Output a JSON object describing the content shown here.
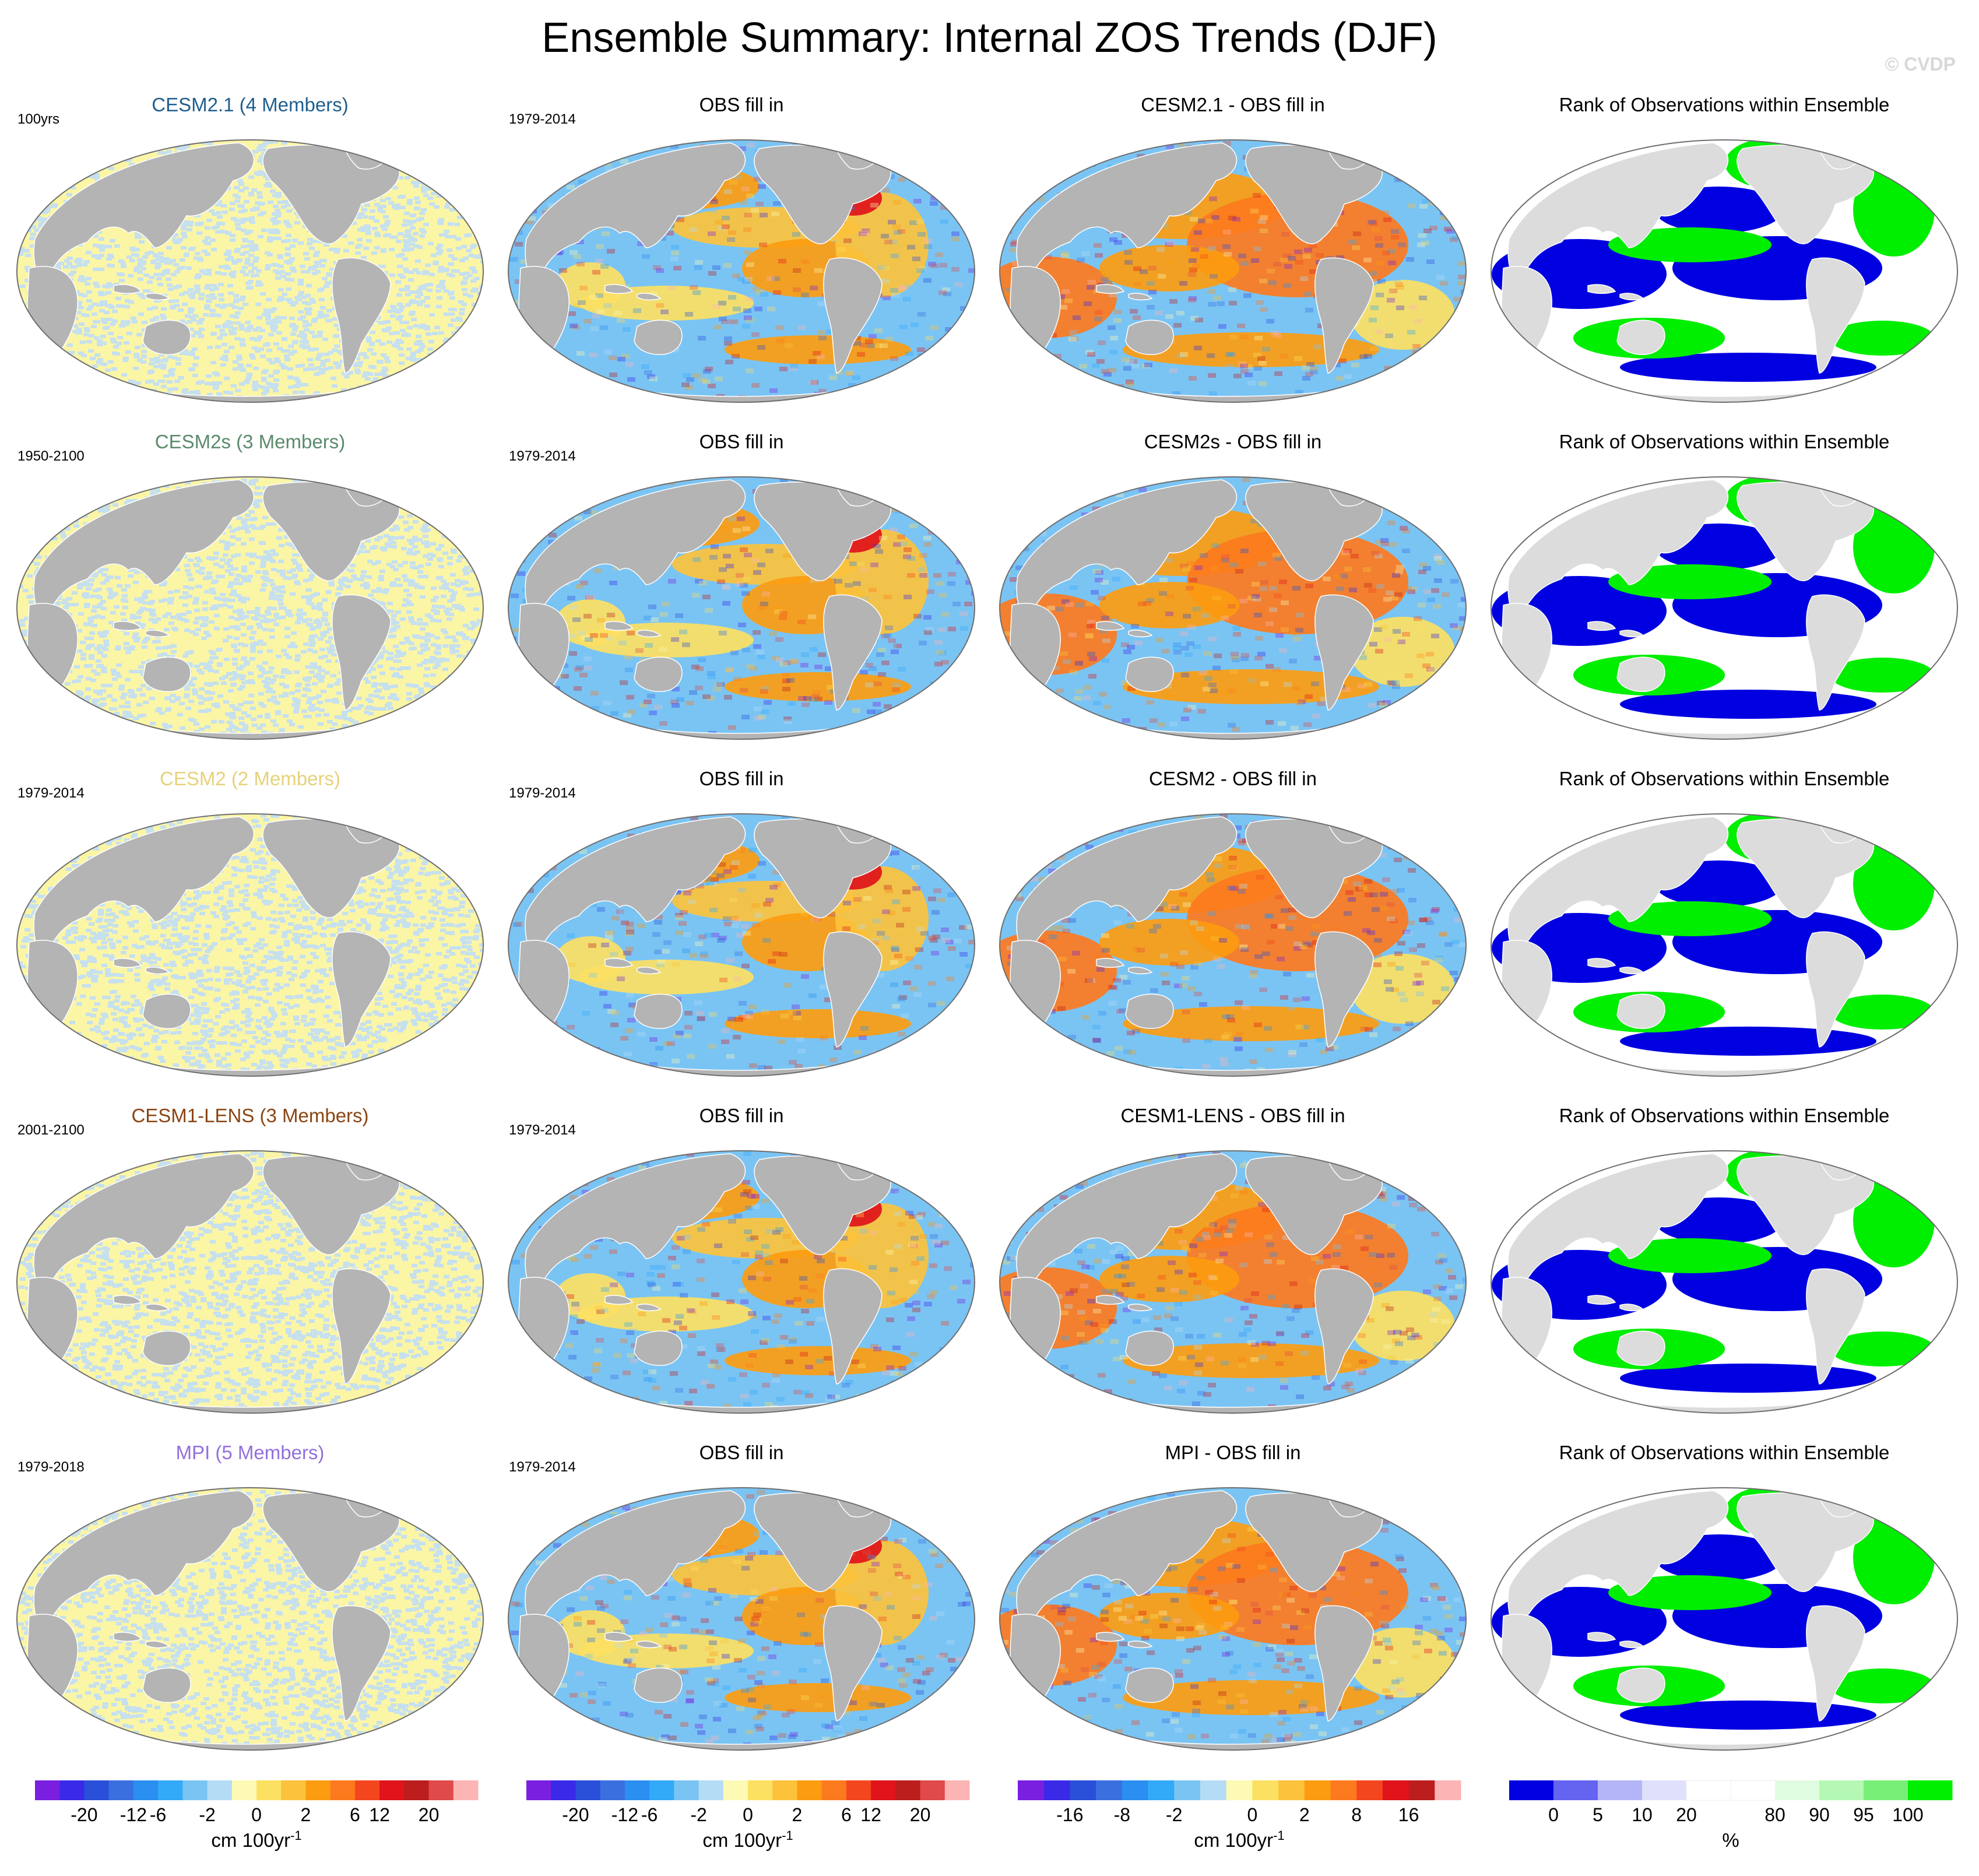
{
  "title": "Ensemble Summary: Internal ZOS Trends (DJF)",
  "credit": "© CVDP",
  "colors": {
    "land": "#b4b4b4",
    "ocean_edge": "#6e6e6e",
    "spread_blue": "#c6e0ee",
    "spread_yellow": "#fbf5a6",
    "rank_low": "#0000e0",
    "rank_high": "#00ee00",
    "rank_land": "#dcdcdc"
  },
  "rows": [
    {
      "model": "CESM2.1",
      "members": "CESM2.1 (4 Members)",
      "color": "#1f5f8f",
      "period": "100yrs",
      "obs_period": "1979-2014",
      "diff_title": "CESM2.1 - OBS fill in"
    },
    {
      "model": "CESM2s",
      "members": "CESM2s (3 Members)",
      "color": "#5b8a6b",
      "period": "1950-2100",
      "obs_period": "1979-2014",
      "diff_title": "CESM2s - OBS fill in"
    },
    {
      "model": "CESM2",
      "members": "CESM2 (2 Members)",
      "color": "#e6d27a",
      "period": "1979-2014",
      "obs_period": "1979-2014",
      "diff_title": "CESM2 - OBS fill in"
    },
    {
      "model": "CESM1-LENS",
      "members": "CESM1-LENS (3 Members)",
      "color": "#8b4513",
      "period": "2001-2100",
      "obs_period": "1979-2014",
      "diff_title": "CESM1-LENS - OBS fill in"
    },
    {
      "model": "MPI",
      "members": "MPI (5 Members)",
      "color": "#9370db",
      "period": "1979-2018",
      "obs_period": "1979-2014",
      "diff_title": "MPI - OBS fill in"
    }
  ],
  "column_titles": {
    "obs": "OBS fill in",
    "rank": "Rank of Observations within Ensemble"
  },
  "colorbars": [
    {
      "name": "trend",
      "unit": "cm 100yr",
      "unit_sup": "-1",
      "colors": [
        "#7a1fe0",
        "#3a2ae8",
        "#2a4fd8",
        "#3a6fe0",
        "#2a8ff0",
        "#32aaf8",
        "#7ac4f4",
        "#b4dcf4",
        "#fcfab4",
        "#fce062",
        "#fcc23c",
        "#fc9c10",
        "#fc7a1e",
        "#f4461e",
        "#e0141a",
        "#bc1e1e",
        "#e04a4a",
        "#fcb4b4"
      ],
      "ticks": [
        "-20",
        "-12",
        "-6",
        "-2",
        "0",
        "2",
        "6",
        "12",
        "20"
      ]
    },
    {
      "name": "obs",
      "unit": "cm 100yr",
      "unit_sup": "-1",
      "colors": [
        "#7a1fe0",
        "#3a2ae8",
        "#2a4fd8",
        "#3a6fe0",
        "#2a8ff0",
        "#32aaf8",
        "#7ac4f4",
        "#b4dcf4",
        "#fcfab4",
        "#fce062",
        "#fcc23c",
        "#fc9c10",
        "#fc7a1e",
        "#f4461e",
        "#e0141a",
        "#bc1e1e",
        "#e04a4a",
        "#fcb4b4"
      ],
      "ticks": [
        "-20",
        "-12",
        "-6",
        "-2",
        "0",
        "2",
        "6",
        "12",
        "20"
      ]
    },
    {
      "name": "diff",
      "unit": "cm 100yr",
      "unit_sup": "-1",
      "colors": [
        "#7a1fe0",
        "#3a2ae8",
        "#2a4fd8",
        "#3a6fe0",
        "#2a8ff0",
        "#32aaf8",
        "#7ac4f4",
        "#b4dcf4",
        "#fcfab4",
        "#fce062",
        "#fcc23c",
        "#fc9c10",
        "#fc7a1e",
        "#f4461e",
        "#e0141a",
        "#bc1e1e",
        "#fcb4b4"
      ],
      "ticks": [
        "-16",
        "-8",
        "-2",
        "0",
        "2",
        "8",
        "16"
      ]
    },
    {
      "name": "rank",
      "unit": "%",
      "unit_sup": "",
      "colors": [
        "#0000e0",
        "#6464f0",
        "#b4b4f8",
        "#e0e0fc",
        "#ffffff",
        "#ffffff",
        "#e0fce0",
        "#b4f8b4",
        "#78f078",
        "#00ee00"
      ],
      "ticks": [
        "0",
        "5",
        "10",
        "20",
        "80",
        "90",
        "95",
        "100"
      ]
    }
  ]
}
